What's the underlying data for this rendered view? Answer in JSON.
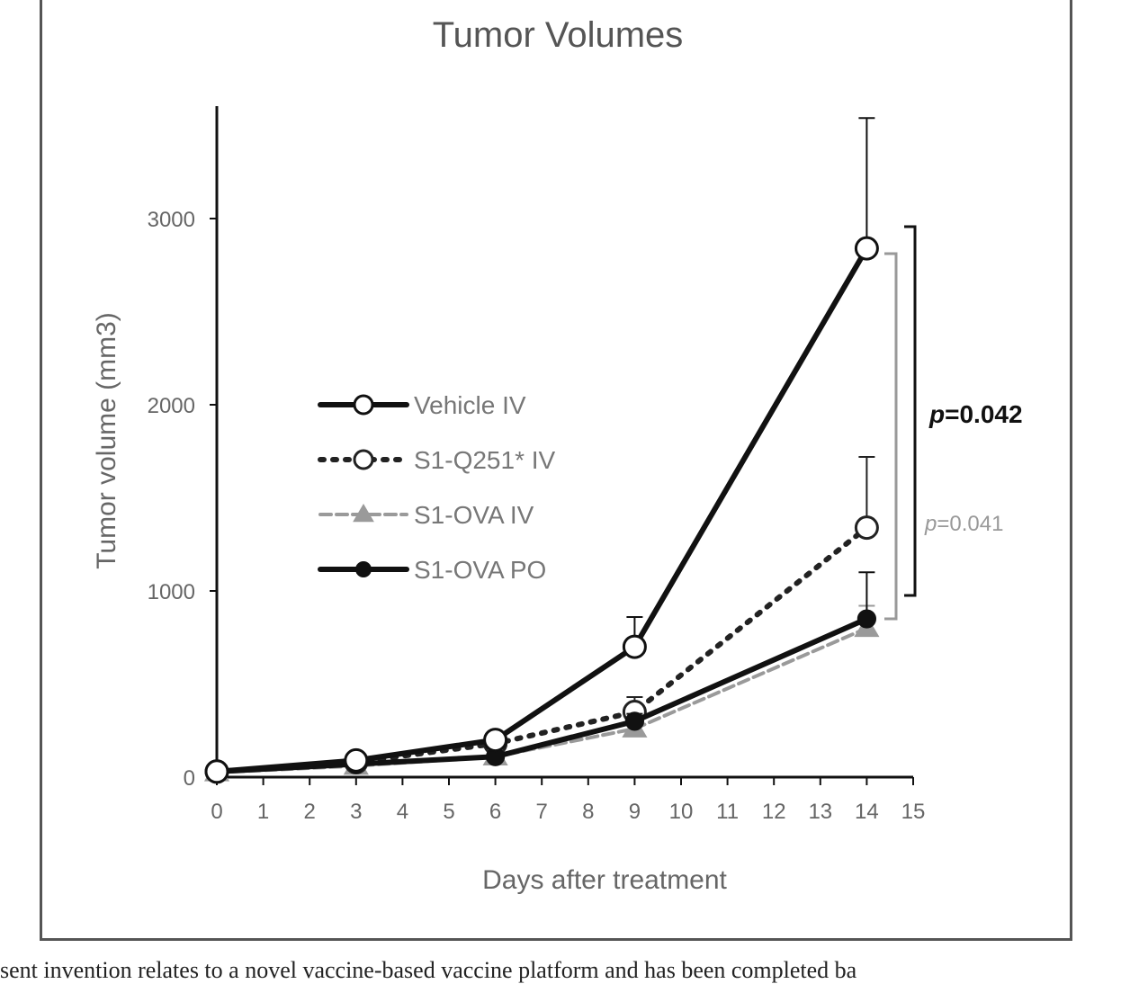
{
  "chart_data": {
    "type": "line",
    "title": "Tumor Volumes",
    "xlabel": "Days after treatment",
    "ylabel": "Tumor volume (mm3)",
    "xlim": [
      0,
      15
    ],
    "ylim": [
      0,
      3500
    ],
    "x_ticks": [
      0,
      1,
      2,
      3,
      4,
      5,
      6,
      7,
      8,
      9,
      10,
      11,
      12,
      13,
      14,
      15
    ],
    "y_ticks": [
      0,
      1000,
      2000,
      3000
    ],
    "x": [
      0,
      3,
      6,
      9,
      14
    ],
    "series": [
      {
        "name": "Vehicle IV",
        "values": [
          30,
          90,
          200,
          700,
          2840
        ],
        "error": [
          20,
          20,
          40,
          160,
          700
        ],
        "color": "#111111",
        "style": "solid",
        "marker": "open-circle"
      },
      {
        "name": "S1-Q251* IV",
        "values": [
          30,
          80,
          180,
          350,
          1340
        ],
        "error": [
          15,
          20,
          30,
          80,
          380
        ],
        "color": "#222222",
        "style": "dotted",
        "marker": "open-circle"
      },
      {
        "name": "S1-OVA IV",
        "values": [
          25,
          60,
          110,
          260,
          800
        ],
        "error": [
          10,
          15,
          20,
          50,
          120
        ],
        "color": "#9a9a9a",
        "style": "dashed",
        "marker": "triangle"
      },
      {
        "name": "S1-OVA PO",
        "values": [
          30,
          70,
          110,
          300,
          850
        ],
        "error": [
          10,
          15,
          20,
          40,
          250
        ],
        "color": "#111111",
        "style": "solid",
        "marker": "filled-circle"
      }
    ],
    "legend_position": "center-left",
    "annotations": [
      {
        "p": "p",
        "value": "=0.042",
        "compares": [
          "Vehicle IV",
          "S1-OVA PO"
        ]
      },
      {
        "p": "p",
        "value": "=0.041",
        "compares": [
          "Vehicle IV",
          "S1-OVA IV"
        ]
      }
    ]
  },
  "footer_text": "sent invention relates to a novel vaccine-based vaccine platform and has been completed ba"
}
